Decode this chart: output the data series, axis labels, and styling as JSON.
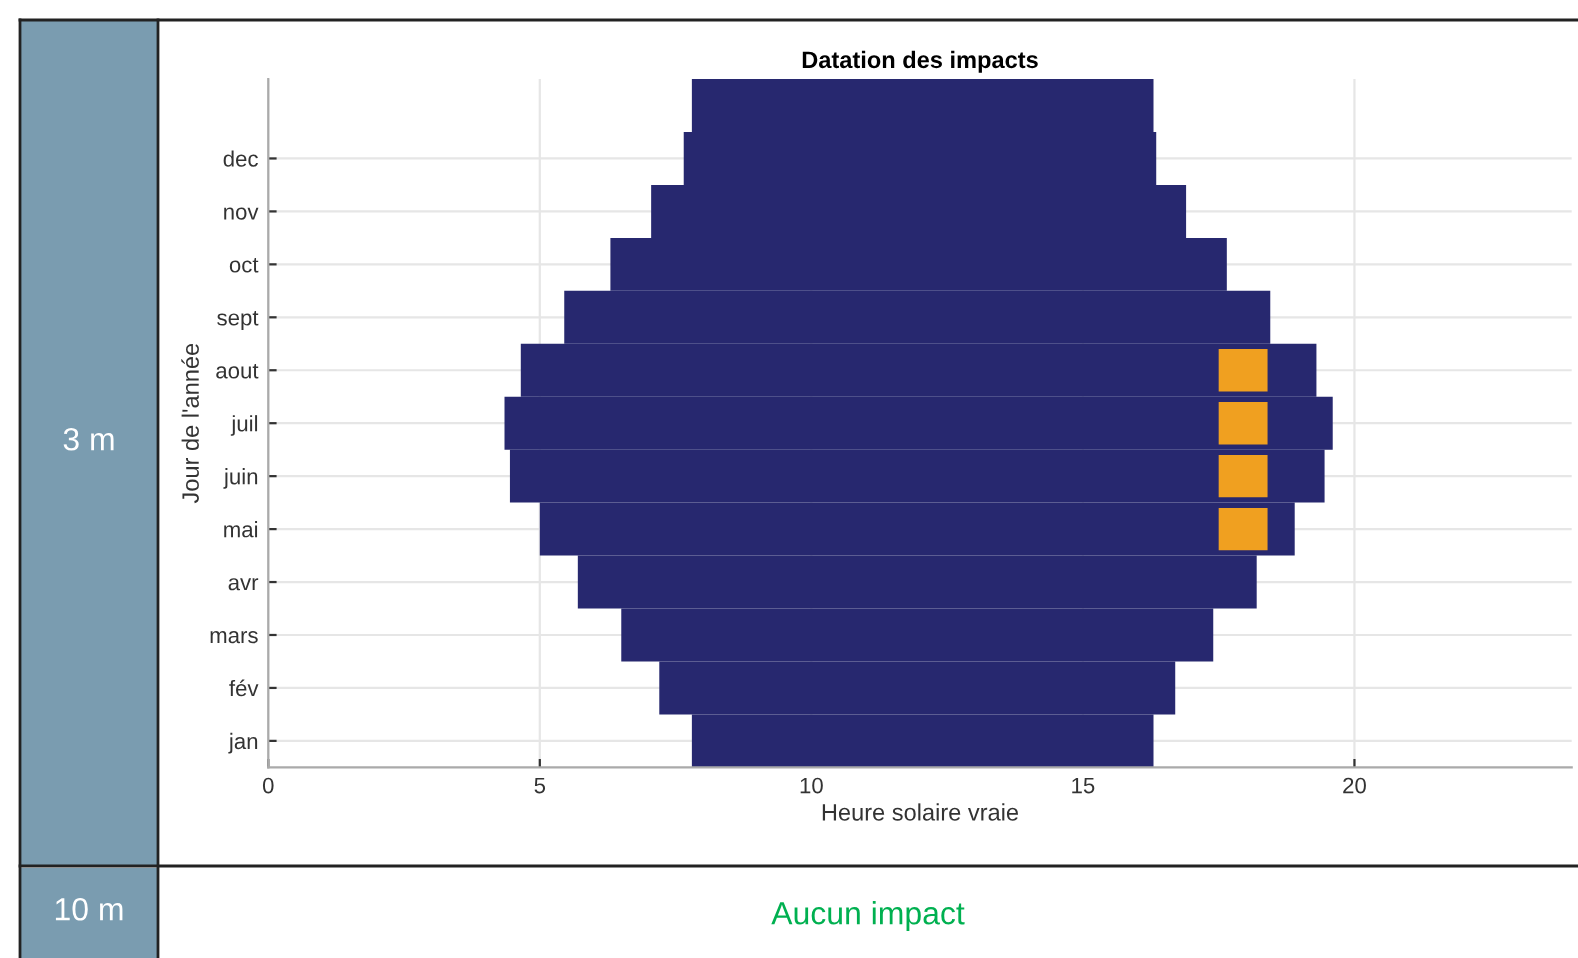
{
  "chart_data": {
    "type": "bar",
    "orientation": "horizontal",
    "title": "Datation des impacts",
    "xlabel": "Heure solaire vraie",
    "ylabel": "Jour de l'année",
    "xlim": [
      0,
      24
    ],
    "xticks": [
      0,
      5,
      10,
      15,
      20
    ],
    "categories": [
      null,
      "dec",
      "nov",
      "oct",
      "sept",
      "aout",
      "juil",
      "juin",
      "mai",
      "avr",
      "mars",
      "fév",
      "jan"
    ],
    "grid": true,
    "series": [
      {
        "color": "#27286f",
        "base": [
          7.8,
          7.65,
          7.05,
          6.3,
          5.45,
          4.65,
          4.35,
          4.45,
          5.0,
          5.7,
          6.5,
          7.2,
          7.8
        ],
        "values": [
          8.5,
          8.7,
          9.85,
          11.35,
          13.0,
          14.65,
          15.25,
          15.0,
          13.9,
          12.5,
          10.9,
          9.5,
          8.5
        ]
      },
      {
        "color": "#f0a020",
        "base": [
          null,
          null,
          null,
          null,
          null,
          17.5,
          17.5,
          17.5,
          17.5,
          null,
          null,
          null,
          null
        ],
        "values": [
          null,
          null,
          null,
          null,
          null,
          0.9,
          0.9,
          0.9,
          0.9,
          null,
          null,
          null,
          null
        ]
      }
    ],
    "annotations": [
      "3 m",
      "10 m",
      "Aucun impact"
    ]
  }
}
